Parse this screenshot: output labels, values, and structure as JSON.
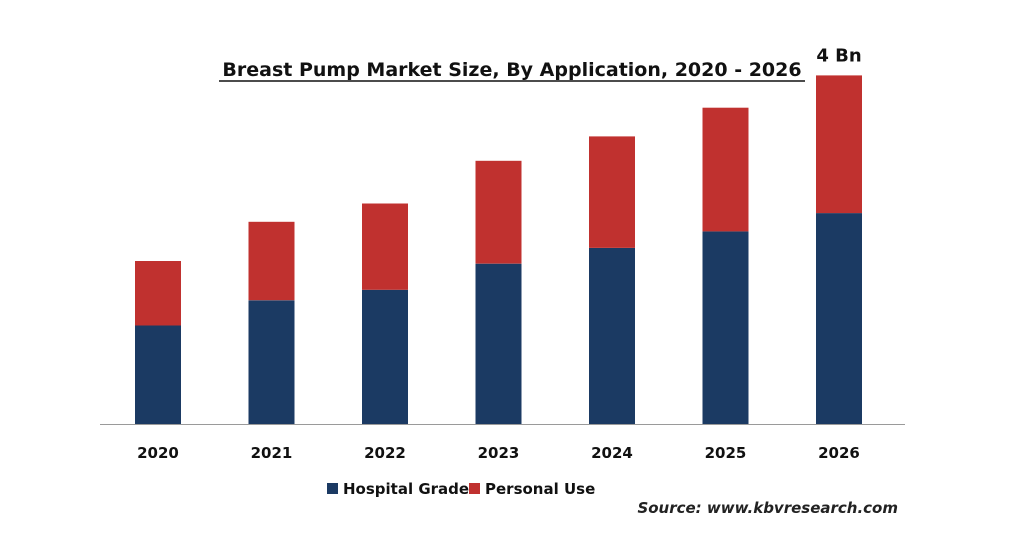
{
  "chart_data": {
    "type": "bar",
    "stacked": true,
    "title": "Breast Pump Market Size, By Application, 2020 - 2026",
    "categories": [
      "2020",
      "2021",
      "2022",
      "2023",
      "2024",
      "2025",
      "2026"
    ],
    "series": [
      {
        "name": "Hospital Grade",
        "color": "#1b3a63",
        "values": [
          1.13,
          1.42,
          1.54,
          1.84,
          2.02,
          2.21,
          2.42
        ]
      },
      {
        "name": "Personal Use",
        "color": "#c0312f",
        "values": [
          0.74,
          0.9,
          0.99,
          1.18,
          1.28,
          1.42,
          1.58
        ]
      }
    ],
    "ylim": [
      0,
      4.2
    ],
    "grid": false,
    "legend_position": "bottom",
    "annotations": [
      {
        "category": "2026",
        "text": "4 Bn"
      }
    ],
    "source": "Source: www.kbvresearch.com"
  }
}
